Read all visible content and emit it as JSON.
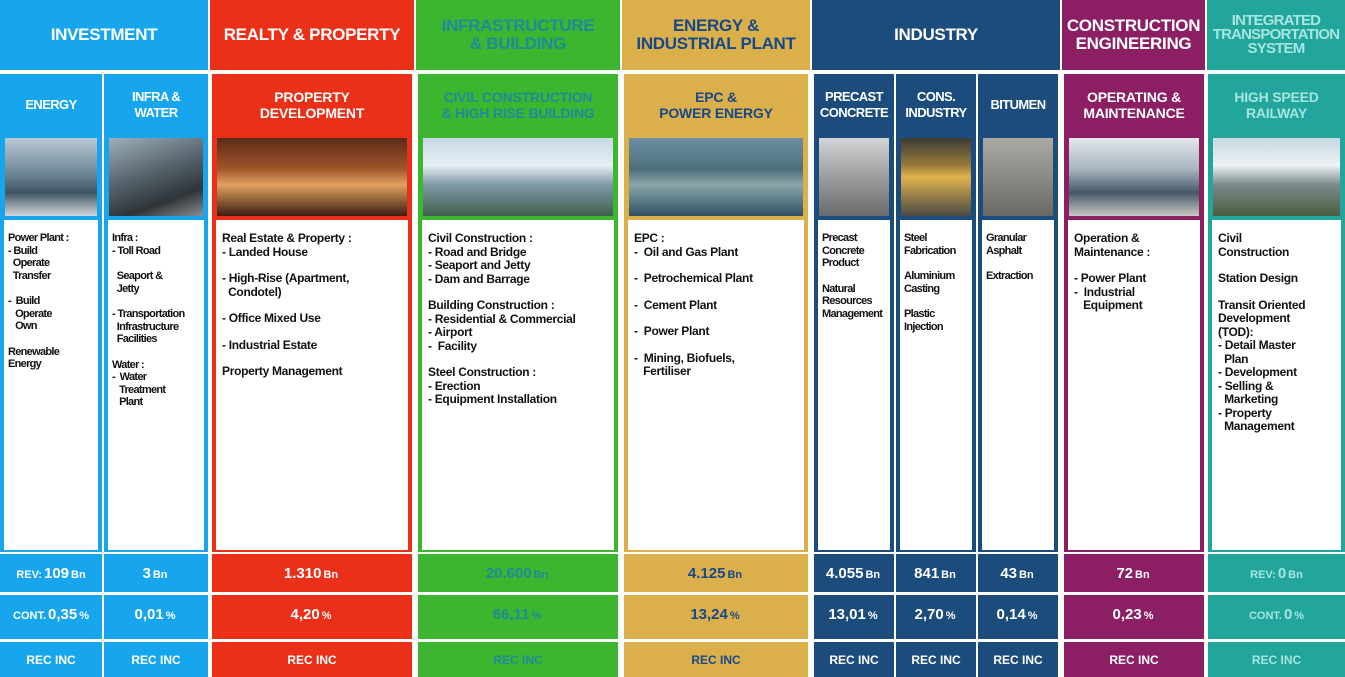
{
  "groups": [
    {
      "title": [
        "INVESTMENT"
      ],
      "color": "#17a6ee",
      "text_color": "#ffffff",
      "columns": [
        {
          "title": [
            "ENERGY"
          ],
          "body": [
            [
              "Power Plant :",
              "- Build",
              "  Operate",
              "  Transfer"
            ],
            [
              "-  Build",
              "   Operate",
              "   Own"
            ],
            [
              "Renewable",
              "Energy"
            ]
          ],
          "revenue": {
            "prefix": "REV:",
            "value": "109",
            "unit": "Bn"
          },
          "contribution": {
            "prefix": "CONT.",
            "value": "0,35",
            "unit": "%"
          },
          "rec": "REC INC"
        },
        {
          "title": [
            "INFRA &",
            "WATER"
          ],
          "body": [
            [
              "Infra :",
              "- Toll Road"
            ],
            [
              "  Seaport &",
              "  Jetty"
            ],
            [
              "- Transportation",
              "  Infrastructure",
              "  Facilities"
            ],
            [
              "Water :",
              "-  Water",
              "   Treatment",
              "   Plant"
            ]
          ],
          "revenue": {
            "value": "3",
            "unit": "Bn"
          },
          "contribution": {
            "value": "0,01",
            "unit": "%"
          },
          "rec": "REC INC"
        }
      ]
    },
    {
      "title": [
        "REALTY & PROPERTY"
      ],
      "color": "#ea3019",
      "text_color": "#ffffff",
      "columns": [
        {
          "title": [
            "PROPERTY",
            "DEVELOPMENT"
          ],
          "body": [
            [
              "Real Estate & Property :",
              "- Landed House"
            ],
            [
              "- High-Rise (Apartment,",
              "  Condotel)"
            ],
            [
              "- Office Mixed Use"
            ],
            [
              "- Industrial Estate"
            ],
            [
              "Property Management"
            ]
          ],
          "revenue": {
            "value": "1.310",
            "unit": "Bn"
          },
          "contribution": {
            "value": "4,20",
            "unit": "%"
          },
          "rec": "REC INC"
        }
      ]
    },
    {
      "title": [
        "INFRASTRUCTURE",
        "& BUILDING"
      ],
      "color": "#3cb52f",
      "text_color": "#1d8c9a",
      "columns": [
        {
          "title": [
            "CIVIL CONSTRUCTION",
            "& HIGH RISE BUILDING"
          ],
          "body": [
            [
              "Civil Construction :",
              "- Road and Bridge",
              "- Seaport and Jetty",
              "- Dam and Barrage"
            ],
            [
              "Building Construction :",
              "- Residential & Commercial",
              "- Airport",
              "-  Facility"
            ],
            [
              "Steel Construction :",
              "- Erection",
              "- Equipment Installation"
            ]
          ],
          "revenue": {
            "value": "20.600",
            "unit": "Bn"
          },
          "contribution": {
            "value": "66,11",
            "unit": "%"
          },
          "rec": "REC INC"
        }
      ]
    },
    {
      "title": [
        "ENERGY &",
        "INDUSTRIAL PLANT"
      ],
      "color": "#dbb04a",
      "text_color": "#17488a",
      "columns": [
        {
          "title": [
            "EPC &",
            "POWER ENERGY"
          ],
          "body": [
            [
              "EPC :",
              "-  Oil and Gas Plant"
            ],
            [
              "-  Petrochemical Plant"
            ],
            [
              "-  Cement Plant"
            ],
            [
              "-  Power Plant"
            ],
            [
              "-  Mining, Biofuels,",
              "   Fertiliser"
            ]
          ],
          "revenue": {
            "value": "4.125",
            "unit": "Bn"
          },
          "contribution": {
            "value": "13,24",
            "unit": "%"
          },
          "rec": "REC INC"
        }
      ]
    },
    {
      "title": [
        "INDUSTRY"
      ],
      "color": "#1b4c7c",
      "text_color": "#ffffff",
      "columns": [
        {
          "title": [
            "PRECAST",
            "CONCRETE"
          ],
          "body": [
            [
              "Precast",
              "Concrete",
              "Product"
            ],
            [
              "Natural",
              "Resources",
              "Management"
            ]
          ],
          "revenue": {
            "value": "4.055",
            "unit": "Bn"
          },
          "contribution": {
            "value": "13,01",
            "unit": "%"
          },
          "rec": "REC INC"
        },
        {
          "title": [
            "CONS.",
            "INDUSTRY"
          ],
          "body": [
            [
              "Steel",
              "Fabrication"
            ],
            [
              "Aluminium",
              "Casting"
            ],
            [
              "Plastic",
              "Injection"
            ]
          ],
          "revenue": {
            "value": "841",
            "unit": "Bn"
          },
          "contribution": {
            "value": "2,70",
            "unit": "%"
          },
          "rec": "REC INC"
        },
        {
          "title": [
            "BITUMEN"
          ],
          "body": [
            [
              "Granular",
              "Asphalt"
            ],
            [
              "Extraction"
            ]
          ],
          "revenue": {
            "value": "43",
            "unit": "Bn"
          },
          "contribution": {
            "value": "0,14",
            "unit": "%"
          },
          "rec": "REC INC"
        }
      ]
    },
    {
      "title": [
        "CONSTRUCTION",
        "ENGINEERING"
      ],
      "color": "#8c1f63",
      "text_color": "#ffffff",
      "columns": [
        {
          "title": [
            "OPERATING &",
            "MAINTENANCE"
          ],
          "body": [
            [
              "Operation &",
              "Maintenance :"
            ],
            [
              "- Power Plant",
              "-  Industrial",
              "   Equipment"
            ]
          ],
          "revenue": {
            "value": "72",
            "unit": "Bn"
          },
          "contribution": {
            "value": "0,23",
            "unit": "%"
          },
          "rec": "REC INC"
        }
      ]
    },
    {
      "title": [
        "INTEGRATED",
        "TRANSPORTATION",
        "SYSTEM"
      ],
      "color": "#22a59b",
      "text_color": "#a6e6e2",
      "columns": [
        {
          "title": [
            "HIGH SPEED",
            "RAILWAY"
          ],
          "body": [
            [
              "Civil",
              "Construction"
            ],
            [
              "Station Design"
            ],
            [
              "Transit Oriented",
              "Development",
              "(TOD):",
              "- Detail Master",
              "  Plan",
              "- Development",
              "- Selling &",
              "  Marketing",
              "- Property",
              "  Management"
            ]
          ],
          "revenue": {
            "prefix": "REV:",
            "value": "0",
            "unit": "Bn"
          },
          "contribution": {
            "prefix": "CONT.",
            "value": "0",
            "unit": "%"
          },
          "rec": "REC INC"
        }
      ]
    }
  ]
}
